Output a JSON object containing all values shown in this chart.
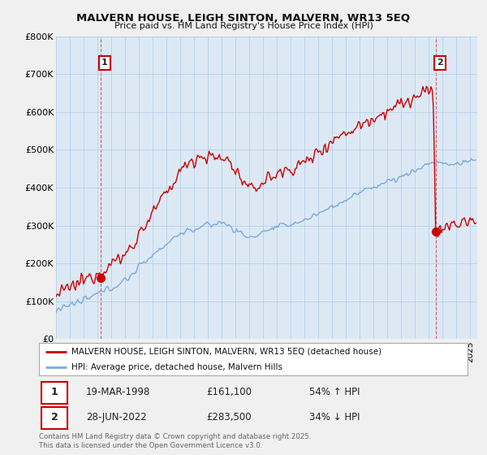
{
  "title": "MALVERN HOUSE, LEIGH SINTON, MALVERN, WR13 5EQ",
  "subtitle": "Price paid vs. HM Land Registry's House Price Index (HPI)",
  "xlim": [
    1995.0,
    2025.5
  ],
  "ylim": [
    0,
    800000
  ],
  "yticks": [
    0,
    100000,
    200000,
    300000,
    400000,
    500000,
    600000,
    700000,
    800000
  ],
  "ytick_labels": [
    "£0",
    "£100K",
    "£200K",
    "£300K",
    "£400K",
    "£500K",
    "£600K",
    "£700K",
    "£800K"
  ],
  "line1_color": "#cc0000",
  "line2_color": "#7aabdb",
  "background_color": "#f0f0f0",
  "plot_bg_color": "#dce9f5",
  "grid_color": "#b8cfe8",
  "legend1": "MALVERN HOUSE, LEIGH SINTON, MALVERN, WR13 5EQ (detached house)",
  "legend2": "HPI: Average price, detached house, Malvern Hills",
  "ann1_label": "1",
  "ann1_date": "19-MAR-1998",
  "ann1_price": "£161,100",
  "ann1_hpi": "54% ↑ HPI",
  "ann1_x": 1998.21,
  "ann1_y": 161100,
  "ann2_label": "2",
  "ann2_date": "28-JUN-2022",
  "ann2_price": "£283,500",
  "ann2_hpi": "34% ↓ HPI",
  "ann2_x": 2022.49,
  "ann2_y": 283500,
  "ann2_peak_y": 660000,
  "footer": "Contains HM Land Registry data © Crown copyright and database right 2025.\nThis data is licensed under the Open Government Licence v3.0."
}
